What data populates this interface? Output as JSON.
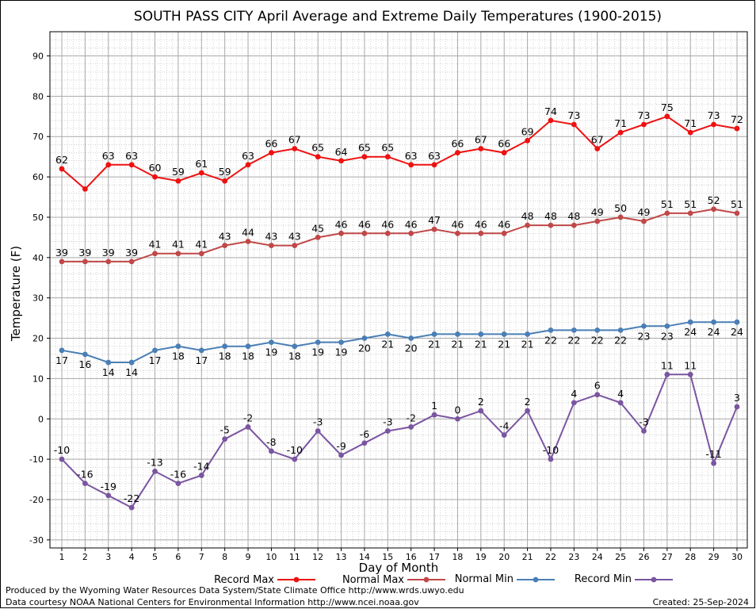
{
  "chart_data": {
    "type": "line",
    "title": "SOUTH PASS CITY April Average and Extreme Daily Temperatures (1900-2015)",
    "xlabel": "Day of Month",
    "ylabel": "Temperature (F)",
    "x": [
      1,
      2,
      3,
      4,
      5,
      6,
      7,
      8,
      9,
      10,
      11,
      12,
      13,
      14,
      15,
      16,
      17,
      18,
      19,
      20,
      21,
      22,
      23,
      24,
      25,
      26,
      27,
      28,
      29,
      30
    ],
    "xlim": [
      1,
      30
    ],
    "ylim": [
      -32,
      96
    ],
    "yticks": [
      -30,
      -20,
      -10,
      0,
      10,
      20,
      30,
      40,
      50,
      60,
      70,
      80,
      90
    ],
    "grid": true,
    "legend": "bottom",
    "series": [
      {
        "name": "Record Max",
        "color": "#ee1111",
        "values": [
          62,
          57,
          63,
          63,
          60,
          59,
          61,
          59,
          63,
          66,
          67,
          65,
          64,
          65,
          65,
          63,
          63,
          66,
          67,
          66,
          69,
          74,
          73,
          67,
          71,
          73,
          75,
          71,
          73,
          72
        ],
        "labels": [
          "62",
          "",
          "63",
          "63",
          "60",
          "59",
          "61",
          "59",
          "63",
          "66",
          "67",
          "65",
          "64",
          "65",
          "65",
          "63",
          "63",
          "66",
          "67",
          "66",
          "69",
          "74",
          "73",
          "67",
          "71",
          "73",
          "75",
          "71",
          "73",
          "72"
        ]
      },
      {
        "name": "Normal Max",
        "color": "#c04848",
        "values": [
          39,
          39,
          39,
          39,
          41,
          41,
          41,
          43,
          44,
          43,
          43,
          45,
          46,
          46,
          46,
          46,
          47,
          46,
          46,
          46,
          48,
          48,
          48,
          49,
          50,
          49,
          51,
          51,
          52,
          51
        ],
        "labels": [
          "39",
          "39",
          "39",
          "39",
          "41",
          "41",
          "41",
          "43",
          "44",
          "43",
          "43",
          "45",
          "46",
          "46",
          "46",
          "46",
          "47",
          "46",
          "46",
          "46",
          "48",
          "48",
          "48",
          "49",
          "50",
          "49",
          "51",
          "51",
          "52",
          "51"
        ]
      },
      {
        "name": "Normal Min",
        "color": "#4a7fb5",
        "values": [
          17,
          16,
          14,
          14,
          17,
          18,
          17,
          18,
          18,
          19,
          18,
          19,
          19,
          20,
          21,
          20,
          21,
          21,
          21,
          21,
          21,
          22,
          22,
          22,
          22,
          23,
          23,
          24,
          24,
          24
        ],
        "labels": [
          "17",
          "16",
          "14",
          "14",
          "17",
          "18",
          "17",
          "18",
          "18",
          "19",
          "18",
          "19",
          "19",
          "20",
          "21",
          "20",
          "21",
          "21",
          "21",
          "21",
          "21",
          "22",
          "22",
          "22",
          "22",
          "23",
          "23",
          "24",
          "24",
          "24"
        ]
      },
      {
        "name": "Record Min",
        "color": "#7a55a0",
        "values": [
          -10,
          -16,
          -19,
          -22,
          -13,
          -16,
          -14,
          -5,
          -2,
          -8,
          -10,
          -3,
          -9,
          -6,
          -3,
          -2,
          1,
          0,
          2,
          -4,
          2,
          -10,
          4,
          6,
          4,
          -3,
          11,
          11,
          -11,
          3
        ],
        "labels": [
          "-10",
          "-16",
          "-19",
          "-22",
          "-13",
          "-16",
          "-14",
          "-5",
          "-2",
          "-8",
          "-10",
          "-3",
          "-9",
          "-6",
          "-3",
          "-2",
          "1",
          "0",
          "2",
          "-4",
          "2",
          "-10",
          "4",
          "6",
          "4",
          "-3",
          "11",
          "11",
          "-11",
          "3"
        ]
      }
    ]
  },
  "footer": {
    "line1": "Produced by the Wyoming Water Resources Data System/State Climate Office http://www.wrds.uwyo.edu",
    "line2": "Data courtesy NOAA National Centers for Environmental Information http://www.ncei.noaa.gov",
    "created": "Created:  25-Sep-2024"
  }
}
